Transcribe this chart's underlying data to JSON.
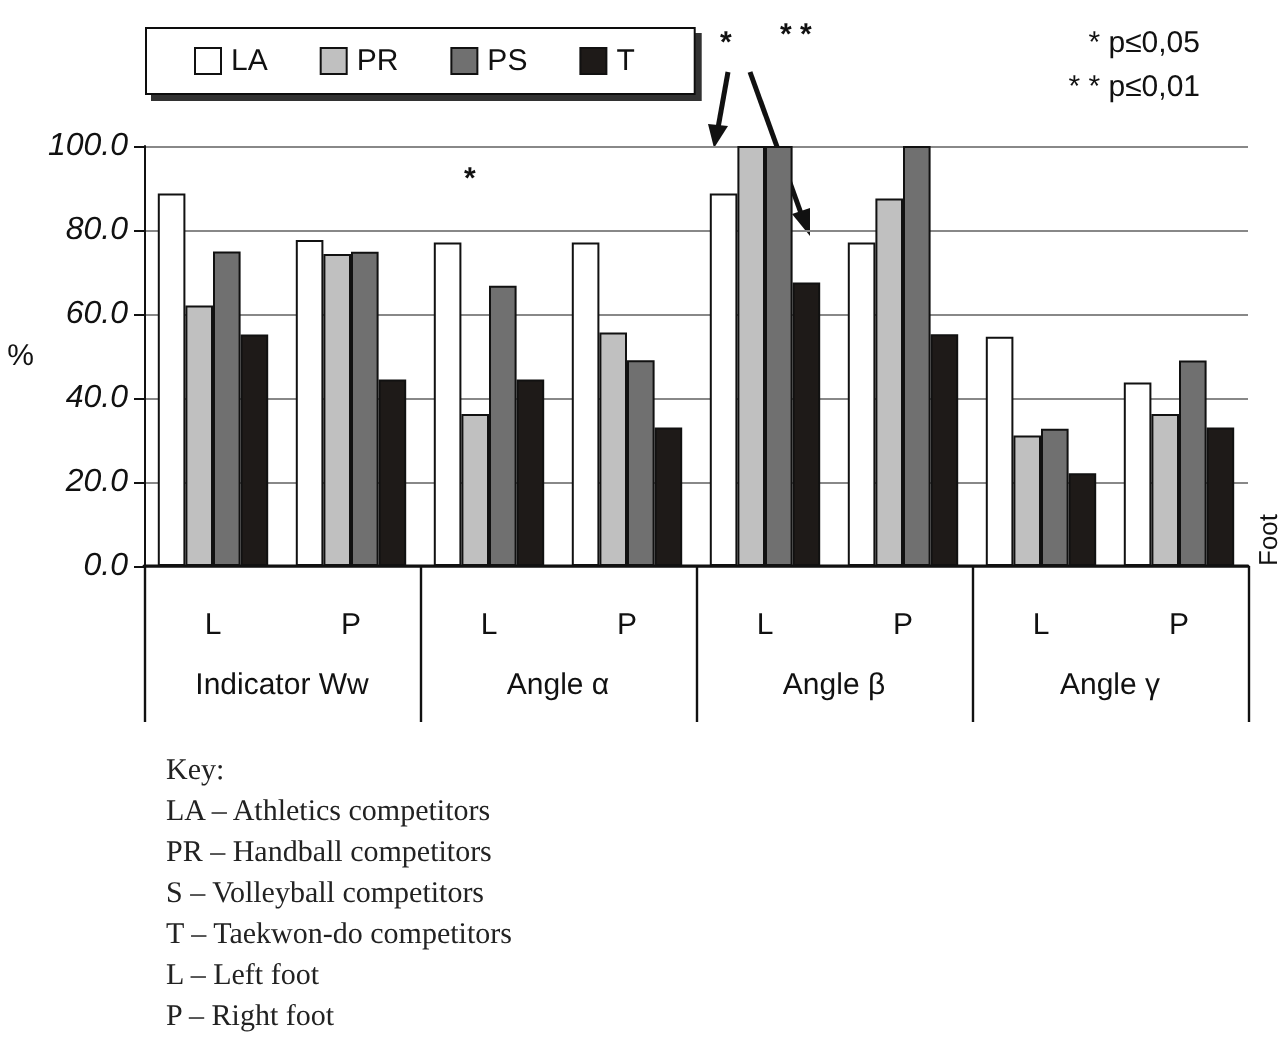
{
  "chart_data": {
    "type": "bar",
    "categories": [
      "L",
      "P",
      "L",
      "P",
      "L",
      "P",
      "L",
      "P"
    ],
    "series": [
      {
        "name": "LA",
        "color": "#ffffff",
        "values": [
          88.7,
          77.6,
          77.0,
          77.0,
          88.7,
          77.0,
          54.6,
          43.7
        ]
      },
      {
        "name": "PR",
        "color": "#c0c0c0",
        "values": [
          62.0,
          74.3,
          36.2,
          55.6,
          100.0,
          87.5,
          31.1,
          36.2
        ]
      },
      {
        "name": "PS",
        "color": "#707070",
        "values": [
          74.9,
          74.8,
          66.7,
          49.0,
          100.0,
          100.0,
          32.7,
          48.9
        ]
      },
      {
        "name": "T",
        "color": "#1e1a18",
        "values": [
          55.1,
          44.4,
          44.4,
          33.0,
          67.5,
          55.2,
          22.1,
          33.0
        ]
      }
    ],
    "ylabel": "%",
    "ylim": [
      0,
      100
    ],
    "yticks": [
      {
        "value": 0,
        "label": "0.0"
      },
      {
        "value": 20,
        "label": "20.0"
      },
      {
        "value": 40,
        "label": "40.0"
      },
      {
        "value": 60,
        "label": "60.0"
      },
      {
        "value": 80,
        "label": "80.0"
      },
      {
        "value": 100,
        "label": "100.0"
      }
    ],
    "grid": "y",
    "legend": "top left",
    "annotations": [
      "Indicator Ww",
      "Angle α",
      "Angle β",
      "Angle γ",
      "*",
      "*",
      "* *",
      "* p≤0,05",
      "* * p≤0,01",
      "Key:",
      "LA – Athletics competitors",
      "PR – Handball competitors",
      "S – Volleyball competitors",
      "T – Taekwon-do competitors",
      "L – Left foot",
      "P – Right foot",
      "Foot"
    ]
  }
}
